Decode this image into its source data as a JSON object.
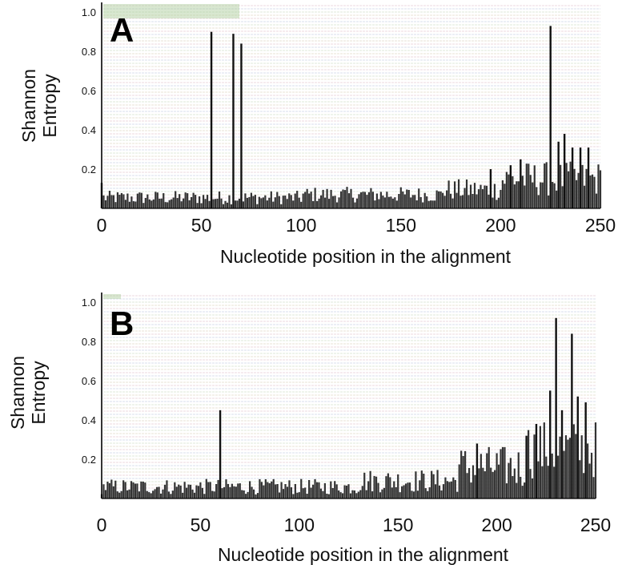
{
  "colors": {
    "bar": "#333333",
    "bar_edge": "#111111",
    "axis": "#000000",
    "background_line_colors": [
      "#ead7dc",
      "#d6dcea",
      "#dce7d6",
      "#e6e0d0"
    ],
    "strip_green": "#a9c997"
  },
  "chart_data": [
    {
      "type": "bar",
      "panel_label": "A",
      "xlabel": "Nucleotide position in the alignment",
      "ylabel": "Shannon Entropy",
      "x_ticks": [
        0,
        50,
        100,
        150,
        200,
        250
      ],
      "y_ticks": [
        0.2,
        0.4,
        0.6,
        0.8,
        1.0
      ],
      "y_tick_labels": [
        "0.2",
        "0.4",
        "0.6",
        "0.8",
        "1.0"
      ],
      "x_tick_labels": [
        "0",
        "50",
        "100",
        "150",
        "200",
        "250"
      ],
      "xlim": [
        0,
        250
      ],
      "ylim": [
        0,
        1.05
      ],
      "grid": false,
      "peaks": [
        {
          "x": 0,
          "y": 0.13
        },
        {
          "x": 55,
          "y": 0.9
        },
        {
          "x": 66,
          "y": 0.89
        },
        {
          "x": 70,
          "y": 0.84
        },
        {
          "x": 195,
          "y": 0.2
        },
        {
          "x": 205,
          "y": 0.22
        },
        {
          "x": 210,
          "y": 0.25
        },
        {
          "x": 225,
          "y": 0.93
        },
        {
          "x": 229,
          "y": 0.34
        },
        {
          "x": 232,
          "y": 0.38
        },
        {
          "x": 236,
          "y": 0.31
        },
        {
          "x": 240,
          "y": 0.31
        },
        {
          "x": 244,
          "y": 0.31
        }
      ],
      "baseline_segments": [
        {
          "x_start": 0,
          "x_end": 100,
          "y_low": 0.02,
          "y_high": 0.09
        },
        {
          "x_start": 100,
          "x_end": 170,
          "y_low": 0.03,
          "y_high": 0.11
        },
        {
          "x_start": 170,
          "x_end": 200,
          "y_low": 0.04,
          "y_high": 0.15
        },
        {
          "x_start": 200,
          "x_end": 250,
          "y_low": 0.06,
          "y_high": 0.24
        }
      ]
    },
    {
      "type": "bar",
      "panel_label": "B",
      "xlabel": "Nucleotide position in the alignment",
      "ylabel": "Shannon Entropy",
      "x_ticks": [
        0,
        50,
        100,
        150,
        200,
        250
      ],
      "y_ticks": [
        0.2,
        0.4,
        0.6,
        0.8,
        1.0
      ],
      "y_tick_labels": [
        "0.2",
        "0.4",
        "0.6",
        "0.8",
        "1.0"
      ],
      "x_tick_labels": [
        "0",
        "50",
        "100",
        "150",
        "200",
        "250"
      ],
      "xlim": [
        0,
        250
      ],
      "ylim": [
        0,
        1.05
      ],
      "grid": false,
      "peaks": [
        {
          "x": 60,
          "y": 0.45
        },
        {
          "x": 190,
          "y": 0.28
        },
        {
          "x": 215,
          "y": 0.32
        },
        {
          "x": 220,
          "y": 0.38
        },
        {
          "x": 227,
          "y": 0.55
        },
        {
          "x": 230,
          "y": 0.92
        },
        {
          "x": 233,
          "y": 0.45
        },
        {
          "x": 238,
          "y": 0.84
        },
        {
          "x": 241,
          "y": 0.52
        },
        {
          "x": 245,
          "y": 0.49
        }
      ],
      "baseline_segments": [
        {
          "x_start": 0,
          "x_end": 130,
          "y_low": 0.02,
          "y_high": 0.1
        },
        {
          "x_start": 130,
          "x_end": 180,
          "y_low": 0.03,
          "y_high": 0.15
        },
        {
          "x_start": 180,
          "x_end": 215,
          "y_low": 0.05,
          "y_high": 0.27
        },
        {
          "x_start": 215,
          "x_end": 250,
          "y_low": 0.1,
          "y_high": 0.4
        }
      ]
    }
  ]
}
